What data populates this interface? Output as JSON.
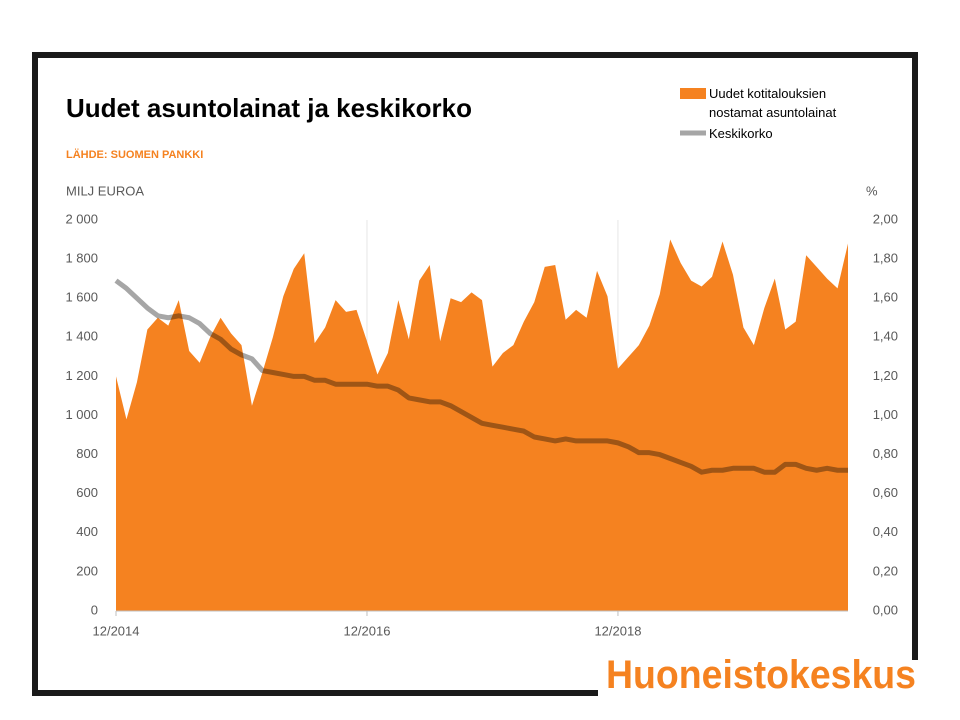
{
  "chart_data": {
    "type": "area",
    "title": "Uudet asuntolainat ja keskikorko",
    "subtitle": "LÄHDE: SUOMEN PANKKI",
    "ylabel": "MILJ EUROA",
    "y2label": "%",
    "logo": "Huoneistokeskus",
    "categories": [
      "12/2014",
      null,
      null,
      null,
      null,
      null,
      null,
      null,
      null,
      null,
      null,
      null,
      null,
      null,
      null,
      null,
      null,
      null,
      null,
      null,
      null,
      null,
      null,
      null,
      "12/2016",
      null,
      null,
      null,
      null,
      null,
      null,
      null,
      null,
      null,
      null,
      null,
      null,
      null,
      null,
      null,
      null,
      null,
      null,
      null,
      null,
      null,
      null,
      null,
      "12/2018",
      null,
      null,
      null,
      null,
      null,
      null,
      null,
      null,
      null,
      null,
      null,
      null,
      null,
      null,
      null,
      null,
      null,
      null,
      null,
      null,
      null,
      null
    ],
    "series": [
      {
        "name": "Uudet kotitalouksien nostamat asuntolainat",
        "type": "area",
        "color": "#f58220",
        "values": [
          1200,
          980,
          1170,
          1440,
          1500,
          1460,
          1590,
          1330,
          1270,
          1400,
          1500,
          1420,
          1360,
          1050,
          1220,
          1400,
          1610,
          1750,
          1830,
          1370,
          1450,
          1590,
          1530,
          1540,
          1380,
          1210,
          1320,
          1590,
          1390,
          1690,
          1770,
          1380,
          1600,
          1580,
          1630,
          1590,
          1250,
          1320,
          1360,
          1480,
          1580,
          1760,
          1770,
          1490,
          1540,
          1500,
          1740,
          1610,
          1240,
          1300,
          1360,
          1460,
          1620,
          1900,
          1780,
          1690,
          1660,
          1710,
          1890,
          1720,
          1450,
          1360,
          1550,
          1700,
          1440,
          1480,
          1820,
          1760,
          1700,
          1650,
          1880
        ]
      },
      {
        "name": "Keskikorko",
        "type": "line",
        "axis": "y2",
        "color": "#a6a6a6",
        "values": [
          1.69,
          1.65,
          1.6,
          1.55,
          1.51,
          1.5,
          1.51,
          1.5,
          1.47,
          1.42,
          1.39,
          1.34,
          1.31,
          1.29,
          1.23,
          1.22,
          1.21,
          1.2,
          1.2,
          1.18,
          1.18,
          1.16,
          1.16,
          1.16,
          1.16,
          1.15,
          1.15,
          1.13,
          1.09,
          1.08,
          1.07,
          1.07,
          1.05,
          1.02,
          0.99,
          0.96,
          0.95,
          0.94,
          0.93,
          0.92,
          0.89,
          0.88,
          0.87,
          0.88,
          0.87,
          0.87,
          0.87,
          0.87,
          0.86,
          0.84,
          0.81,
          0.81,
          0.8,
          0.78,
          0.76,
          0.74,
          0.71,
          0.72,
          0.72,
          0.73,
          0.73,
          0.73,
          0.71,
          0.71,
          0.75,
          0.75,
          0.73,
          0.72,
          0.73,
          0.72,
          0.72
        ]
      }
    ],
    "ylim": [
      0,
      2000
    ],
    "yticks": [
      0,
      200,
      400,
      600,
      800,
      {
        "value": 1000,
        "label": "1 000"
      },
      {
        "value": 1200,
        "label": "1 200"
      },
      {
        "value": 1400,
        "label": "1 400"
      },
      {
        "value": 1600,
        "label": "1 600"
      },
      {
        "value": 1800,
        "label": "1 800"
      },
      {
        "value": 2000,
        "label": "2 000"
      }
    ],
    "y2lim": [
      0,
      2
    ],
    "y2ticks": [
      {
        "value": 0,
        "label": "0,00"
      },
      {
        "value": 0.2,
        "label": "0,20"
      },
      {
        "value": 0.4,
        "label": "0,40"
      },
      {
        "value": 0.6,
        "label": "0,60"
      },
      {
        "value": 0.8,
        "label": "0,80"
      },
      {
        "value": 1,
        "label": "1,00"
      },
      {
        "value": 1.2,
        "label": "1,20"
      },
      {
        "value": 1.4,
        "label": "1,40"
      },
      {
        "value": 1.6,
        "label": "1,60"
      },
      {
        "value": 1.8,
        "label": "1,80"
      },
      {
        "value": 2,
        "label": "2,00"
      }
    ],
    "legend": "top-right"
  }
}
